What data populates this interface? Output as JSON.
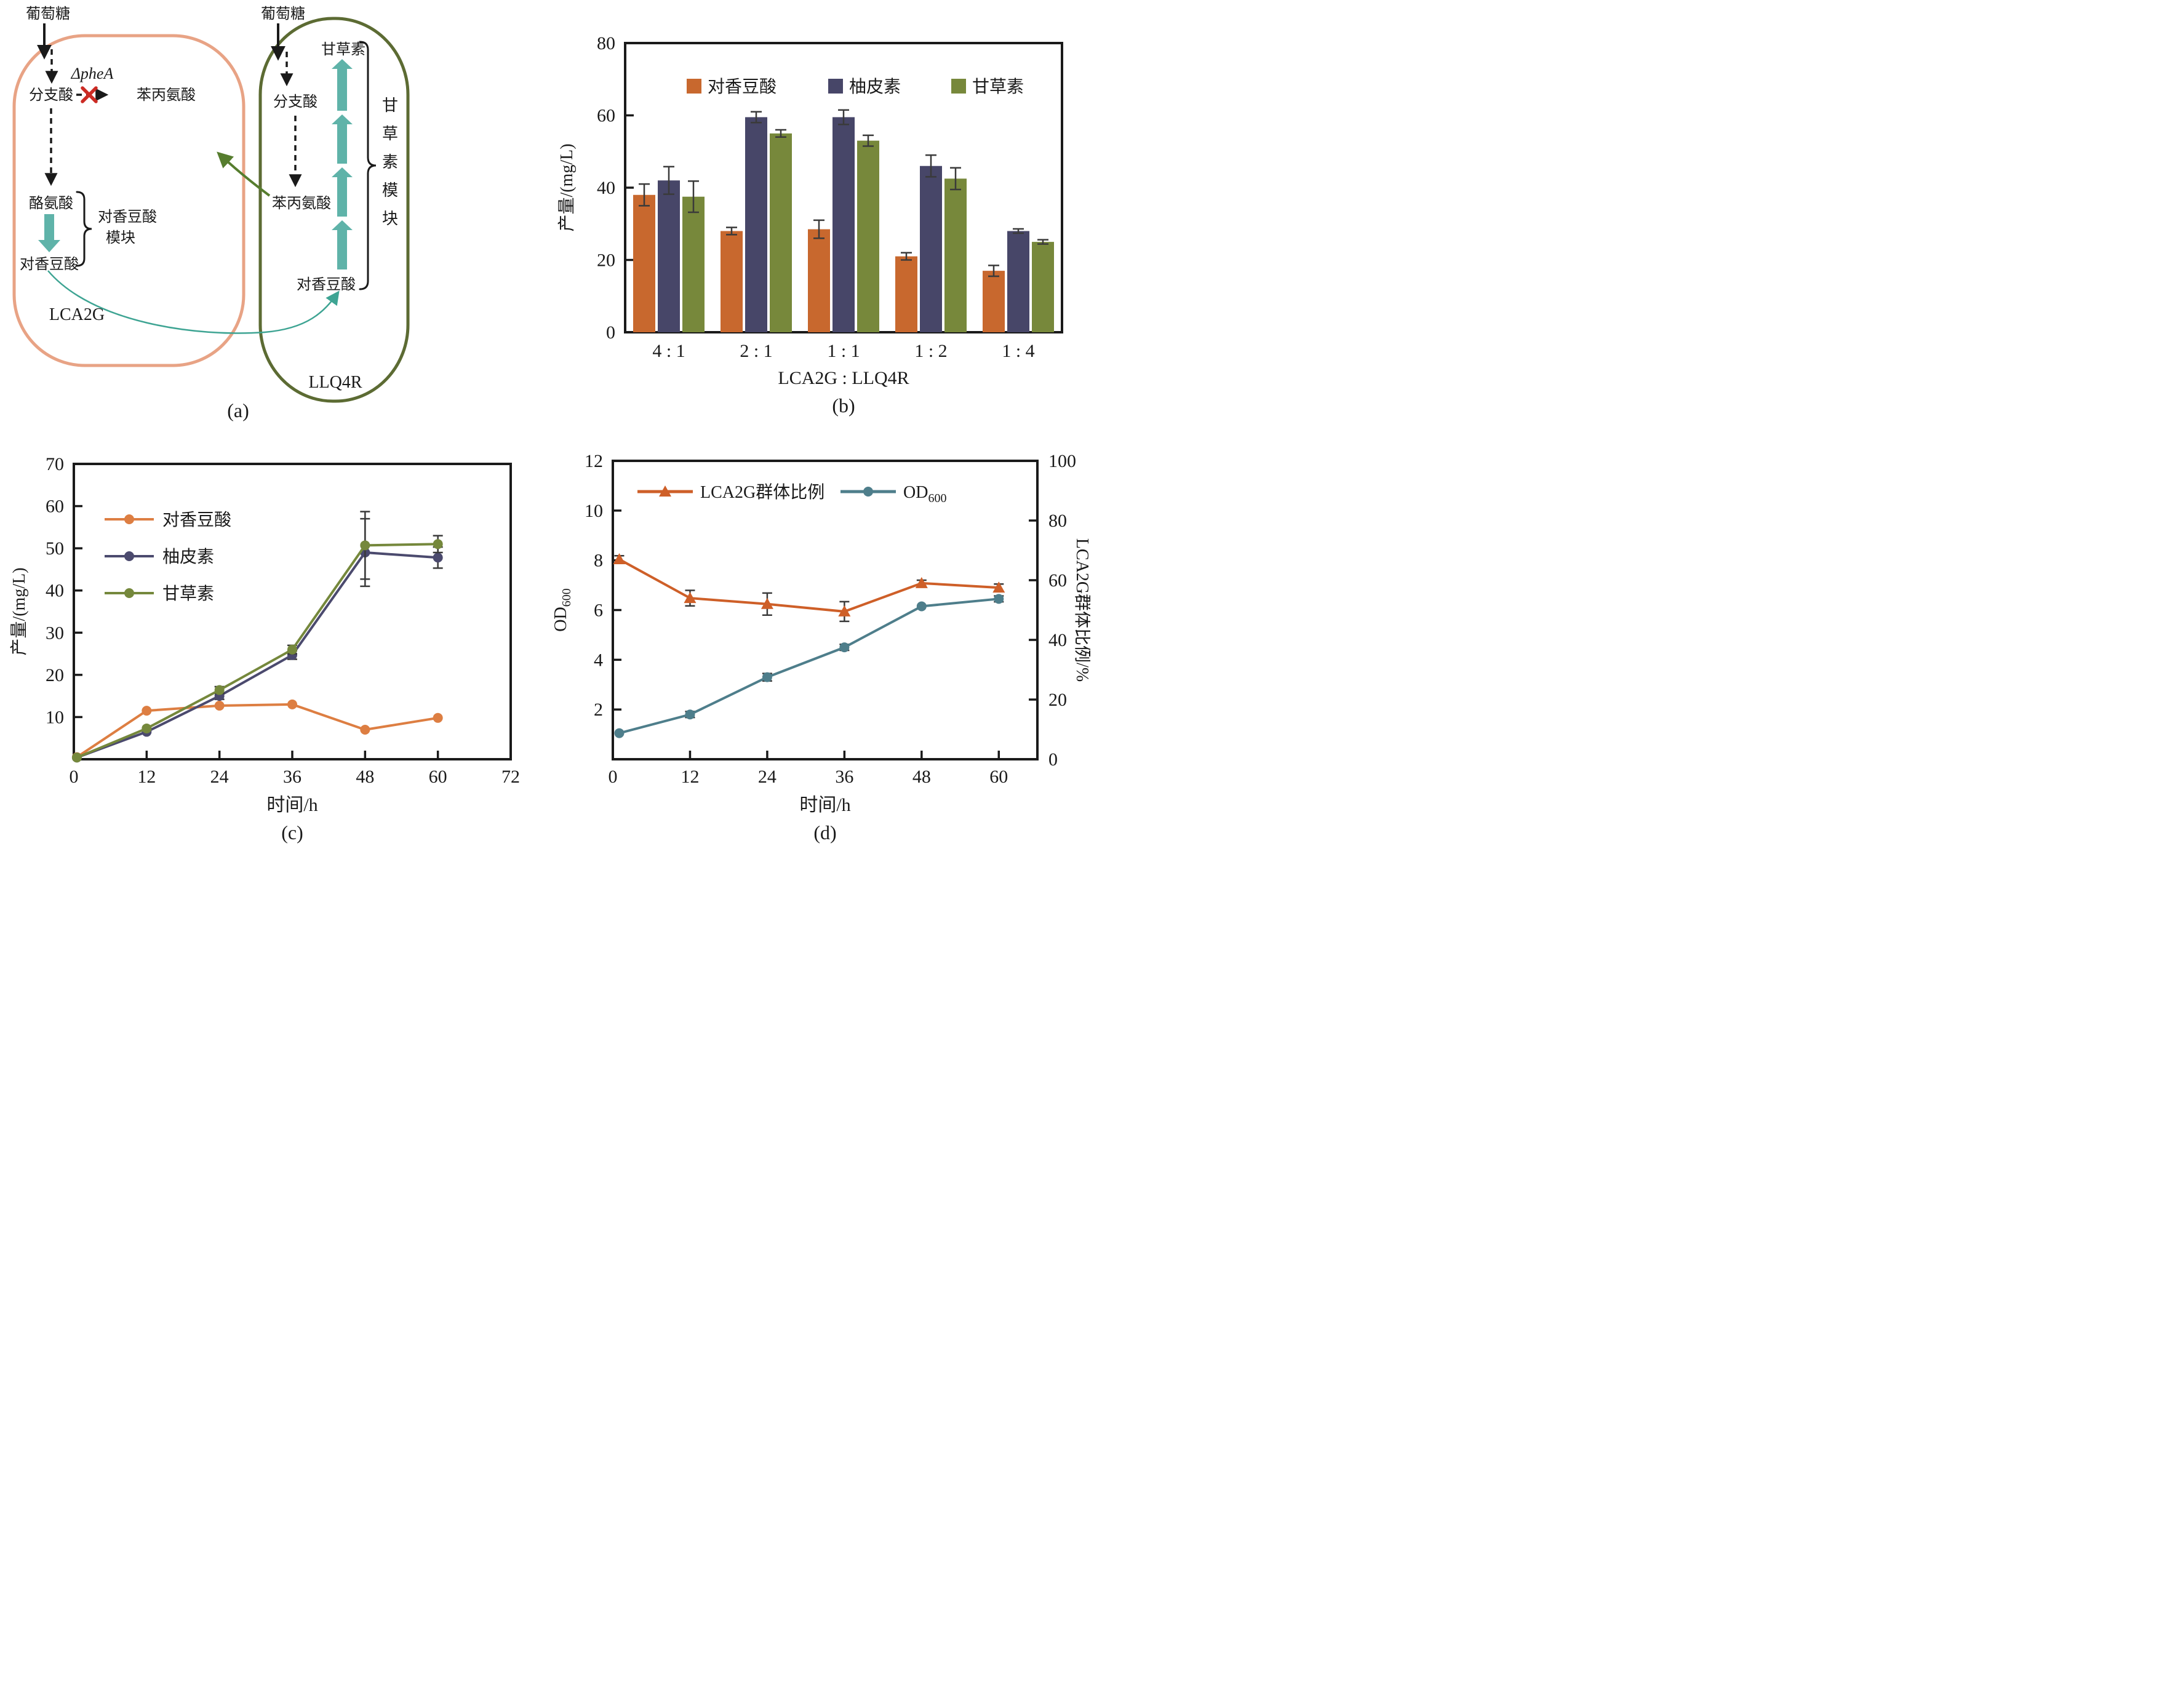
{
  "figure": {
    "background": "#ffffff"
  },
  "diagram": {
    "caption": "(a)",
    "glucose_left": "葡萄糖",
    "glucose_right": "葡萄糖",
    "left_cell": {
      "name": "LCA2G",
      "chorismate": "分支酸",
      "pheA_knockout": "ΔpheA",
      "phenylalanine": "苯丙氨酸",
      "tyrosine": "酪氨酸",
      "p_coumaric_acid": "对香豆酸",
      "module_line1": "对香豆酸",
      "module_line2": "模块"
    },
    "right_cell": {
      "name": "LLQ4R",
      "chorismate": "分支酸",
      "phenylalanine": "苯丙氨酸",
      "liquiritigenin": "甘草素",
      "p_coumaric_acid": "对香豆酸",
      "module_label": "甘草素模块"
    },
    "colors": {
      "left_membrane": "#E8A385",
      "right_membrane": "#5C6B33",
      "block_arrow": "#5FB3A9",
      "transfer_curve": "#3EA493",
      "phe_transfer_arrow": "#567D2E",
      "knockout_x": "#CC2B24",
      "text": "#1a1a1a"
    }
  },
  "chart_data": [
    {
      "id": "b",
      "type": "bar",
      "caption": "(b)",
      "xlabel": "LCA2G : LLQ4R",
      "ylabel": "产量/(mg/L)",
      "ylim": [
        0,
        80
      ],
      "yticks": [
        0,
        20,
        40,
        60,
        80
      ],
      "categories": [
        "4 : 1",
        "2 : 1",
        "1 : 1",
        "1 : 2",
        "1 : 4"
      ],
      "legend_position": "top-inside",
      "grid": false,
      "series": [
        {
          "name": "对香豆酸",
          "color": "#C8682E",
          "values": [
            38,
            28,
            28.5,
            21,
            17
          ],
          "errors": [
            3,
            1,
            2.5,
            1,
            1.5
          ]
        },
        {
          "name": "柚皮素",
          "color": "#474668",
          "values": [
            42,
            59.5,
            59.5,
            46,
            28
          ],
          "errors": [
            3.8,
            1.5,
            2,
            3,
            0.6
          ]
        },
        {
          "name": "甘草素",
          "color": "#77883B",
          "values": [
            37.5,
            55,
            53,
            42.5,
            25
          ],
          "errors": [
            4.3,
            1,
            1.5,
            3,
            0.6
          ]
        }
      ]
    },
    {
      "id": "c",
      "type": "line",
      "caption": "(c)",
      "xlabel": "时间/h",
      "ylabel": "产量/(mg/L)",
      "xlim": [
        0,
        72
      ],
      "xticks": [
        0,
        12,
        24,
        36,
        48,
        60,
        72
      ],
      "ylim": [
        0,
        70
      ],
      "yticks": [
        10,
        20,
        30,
        40,
        50,
        60,
        70
      ],
      "legend_position": "upper-left-inside",
      "grid": false,
      "x": [
        0.5,
        12,
        24,
        36,
        48,
        60
      ],
      "series": [
        {
          "name": "对香豆酸",
          "color": "#DD7E42",
          "marker": "circle",
          "values": [
            0.5,
            11.5,
            12.7,
            13,
            7,
            9.8
          ],
          "errors": [
            0.3,
            0.5,
            0.5,
            0.5,
            0.4,
            0.4
          ]
        },
        {
          "name": "柚皮素",
          "color": "#4B4A6E",
          "marker": "circle",
          "values": [
            0.4,
            6.5,
            15,
            24.7,
            49,
            47.8
          ],
          "errors": [
            0.3,
            0.5,
            0.8,
            1,
            8,
            2.5
          ]
        },
        {
          "name": "甘草素",
          "color": "#75883C",
          "marker": "circle",
          "values": [
            0.4,
            7.3,
            16.4,
            26,
            50.7,
            51
          ],
          "errors": [
            0.3,
            0.5,
            0.8,
            1,
            8,
            2
          ]
        }
      ]
    },
    {
      "id": "d",
      "type": "dual-line",
      "caption": "(d)",
      "xlabel": "时间/h",
      "ylabel_left_main": "OD",
      "ylabel_left_sub": "600",
      "ylabel_right": "LCA2G群体比例/%",
      "xlim": [
        0,
        66
      ],
      "xticks": [
        0,
        12,
        24,
        36,
        48,
        60
      ],
      "ylim_left": [
        0,
        12
      ],
      "yticks_left": [
        2,
        4,
        6,
        8,
        10,
        12
      ],
      "ylim_right": [
        0,
        100
      ],
      "yticks_right": [
        0,
        20,
        40,
        60,
        80,
        100
      ],
      "grid": false,
      "x": [
        1,
        12,
        24,
        36,
        48,
        60
      ],
      "series": [
        {
          "name": "LCA2G群体比例",
          "name_main": "LCA2G群体比例",
          "name_sub": "",
          "axis": "right",
          "marker": "triangle",
          "color": "#CE5F28",
          "values": [
            67,
            54,
            52,
            49.5,
            59,
            57.5
          ],
          "errors": [
            1.2,
            2.6,
            3.7,
            3.3,
            1.0,
            1.2
          ]
        },
        {
          "name": "OD600",
          "name_main": "OD",
          "name_sub": "600",
          "axis": "left",
          "marker": "circle",
          "color": "#4E7E8B",
          "values": [
            1.05,
            1.8,
            3.3,
            4.5,
            6.15,
            6.45
          ],
          "errors": [
            0.1,
            0.12,
            0.15,
            0.12,
            0.1,
            0.12
          ]
        }
      ]
    }
  ]
}
